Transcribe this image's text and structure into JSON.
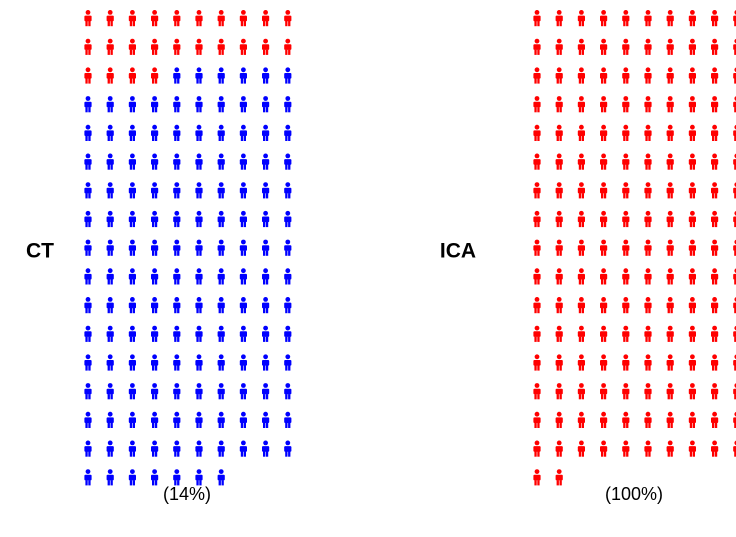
{
  "chart_data": [
    {
      "type": "pictogram",
      "label": "CT",
      "total": 167,
      "highlighted": 24,
      "columns": 10,
      "highlight_color": "#ff0000",
      "base_color": "#0000ff",
      "value": 14,
      "value_label": "(14%)"
    },
    {
      "type": "pictogram",
      "label": "ICA",
      "total": 162,
      "highlighted": 162,
      "columns": 10,
      "highlight_color": "#ff0000",
      "base_color": "#0000ff",
      "value": 100,
      "value_label": "(100%)"
    }
  ]
}
